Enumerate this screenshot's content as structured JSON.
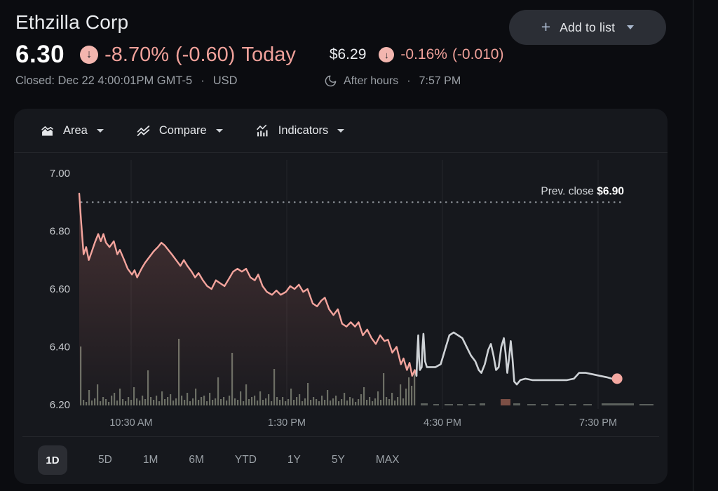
{
  "glyphs": {
    "down_arrow": "↓",
    "plus": "+",
    "dot": "·"
  },
  "header": {
    "company": "Ethzilla Corp",
    "price": "6.30",
    "change_percent": "-8.70%",
    "change_amount": "(-0.60)",
    "change_period": "Today",
    "closed_info": "Closed: Dec 22 4:00:01PM GMT-5",
    "currency": "USD",
    "after_hours": {
      "price": "$6.29",
      "change_percent": "-0.16%",
      "change_amount": "(-0.010)",
      "label": "After hours",
      "time": "7:57 PM"
    },
    "add_to_list_label": "Add to list"
  },
  "toolbar": {
    "area_label": "Area",
    "compare_label": "Compare",
    "indicators_label": "Indicators"
  },
  "tabs": [
    {
      "label": "1D",
      "selected": true
    },
    {
      "label": "5D",
      "selected": false
    },
    {
      "label": "1M",
      "selected": false
    },
    {
      "label": "6M",
      "selected": false
    },
    {
      "label": "YTD",
      "selected": false
    },
    {
      "label": "1Y",
      "selected": false
    },
    {
      "label": "5Y",
      "selected": false
    },
    {
      "label": "MAX",
      "selected": false
    }
  ],
  "colors": {
    "page_bg": "#0b0c10",
    "panel_bg": "#16181d",
    "down_text": "#f0a19a",
    "badge_bg": "#f3b6af",
    "badge_arrow": "#22252a",
    "line_regular": "#f4a49d",
    "line_after": "#ced2d6",
    "end_dot": "#f4a8a1",
    "area_fill_top": "rgba(242,139,130,0.22)",
    "area_fill_bottom": "rgba(242,139,130,0.02)",
    "grid": "#24262b",
    "prev_close_dots": "#8d9298",
    "y_tick_text": "#c6c9cd",
    "x_tick_text": "#9aa0a6",
    "volume": "#70766a",
    "volume_after": "#696f68",
    "volume_red": "#7c4f45"
  },
  "chart_data": {
    "type": "area",
    "title": "Ethzilla Corp intraday price (1D)",
    "y_axis": {
      "ticks": [
        7.0,
        6.8,
        6.6,
        6.4,
        6.2
      ],
      "range": [
        6.2,
        7.0
      ]
    },
    "x_axis": {
      "labels": [
        "10:30 AM",
        "1:30 PM",
        "4:30 PM",
        "7:30 PM"
      ],
      "label_minutes_from_open": [
        60,
        240,
        420,
        600
      ],
      "open_time": "9:30 AM",
      "grid": true
    },
    "prev_close": {
      "label": "Prev. close",
      "value_text": "$6.90",
      "value": 6.9
    },
    "series": [
      {
        "name": "regular_session",
        "color_key": "line_regular",
        "points": [
          [
            0,
            6.93
          ],
          [
            2,
            6.84
          ],
          [
            5,
            6.72
          ],
          [
            8,
            6.745
          ],
          [
            11,
            6.7
          ],
          [
            14,
            6.725
          ],
          [
            18,
            6.76
          ],
          [
            22,
            6.79
          ],
          [
            25,
            6.765
          ],
          [
            28,
            6.79
          ],
          [
            31,
            6.76
          ],
          [
            35,
            6.745
          ],
          [
            40,
            6.765
          ],
          [
            44,
            6.72
          ],
          [
            47,
            6.735
          ],
          [
            52,
            6.7
          ],
          [
            56,
            6.67
          ],
          [
            61,
            6.65
          ],
          [
            64,
            6.665
          ],
          [
            67,
            6.64
          ],
          [
            72,
            6.67
          ],
          [
            76,
            6.69
          ],
          [
            81,
            6.71
          ],
          [
            86,
            6.73
          ],
          [
            91,
            6.745
          ],
          [
            95,
            6.76
          ],
          [
            99,
            6.75
          ],
          [
            103,
            6.735
          ],
          [
            107,
            6.72
          ],
          [
            112,
            6.7
          ],
          [
            117,
            6.68
          ],
          [
            121,
            6.7
          ],
          [
            125,
            6.68
          ],
          [
            130,
            6.66
          ],
          [
            134,
            6.64
          ],
          [
            138,
            6.655
          ],
          [
            143,
            6.63
          ],
          [
            148,
            6.61
          ],
          [
            153,
            6.6
          ],
          [
            158,
            6.63
          ],
          [
            163,
            6.62
          ],
          [
            168,
            6.61
          ],
          [
            173,
            6.635
          ],
          [
            178,
            6.66
          ],
          [
            183,
            6.67
          ],
          [
            188,
            6.66
          ],
          [
            193,
            6.67
          ],
          [
            198,
            6.64
          ],
          [
            203,
            6.63
          ],
          [
            207,
            6.65
          ],
          [
            212,
            6.61
          ],
          [
            217,
            6.59
          ],
          [
            223,
            6.58
          ],
          [
            228,
            6.595
          ],
          [
            233,
            6.58
          ],
          [
            239,
            6.59
          ],
          [
            244,
            6.61
          ],
          [
            249,
            6.6
          ],
          [
            254,
            6.615
          ],
          [
            259,
            6.59
          ],
          [
            264,
            6.6
          ],
          [
            270,
            6.55
          ],
          [
            275,
            6.54
          ],
          [
            280,
            6.56
          ],
          [
            284,
            6.57
          ],
          [
            289,
            6.53
          ],
          [
            294,
            6.51
          ],
          [
            299,
            6.53
          ],
          [
            304,
            6.48
          ],
          [
            309,
            6.47
          ],
          [
            314,
            6.485
          ],
          [
            319,
            6.47
          ],
          [
            323,
            6.485
          ],
          [
            328,
            6.44
          ],
          [
            333,
            6.46
          ],
          [
            338,
            6.43
          ],
          [
            343,
            6.41
          ],
          [
            348,
            6.44
          ],
          [
            353,
            6.42
          ],
          [
            357,
            6.425
          ],
          [
            362,
            6.38
          ],
          [
            367,
            6.4
          ],
          [
            372,
            6.34
          ],
          [
            375,
            6.36
          ],
          [
            379,
            6.32
          ],
          [
            382,
            6.345
          ],
          [
            385,
            6.3
          ],
          [
            388,
            6.32
          ],
          [
            390,
            6.3
          ]
        ]
      },
      {
        "name": "after_hours",
        "color_key": "line_after",
        "points": [
          [
            390,
            6.3
          ],
          [
            391,
            6.38
          ],
          [
            392,
            6.44
          ],
          [
            393,
            6.36
          ],
          [
            394,
            6.32
          ],
          [
            396,
            6.33
          ],
          [
            397,
            6.4
          ],
          [
            398,
            6.445
          ],
          [
            400,
            6.35
          ],
          [
            402,
            6.33
          ],
          [
            406,
            6.33
          ],
          [
            412,
            6.33
          ],
          [
            418,
            6.34
          ],
          [
            424,
            6.4
          ],
          [
            428,
            6.44
          ],
          [
            433,
            6.45
          ],
          [
            438,
            6.44
          ],
          [
            443,
            6.43
          ],
          [
            448,
            6.4
          ],
          [
            453,
            6.37
          ],
          [
            458,
            6.35
          ],
          [
            462,
            6.32
          ],
          [
            465,
            6.31
          ],
          [
            469,
            6.34
          ],
          [
            473,
            6.39
          ],
          [
            476,
            6.41
          ],
          [
            479,
            6.37
          ],
          [
            482,
            6.32
          ],
          [
            485,
            6.33
          ],
          [
            488,
            6.4
          ],
          [
            491,
            6.43
          ],
          [
            493,
            6.38
          ],
          [
            495,
            6.31
          ],
          [
            497,
            6.36
          ],
          [
            499,
            6.42
          ],
          [
            501,
            6.36
          ],
          [
            503,
            6.28
          ],
          [
            506,
            6.27
          ],
          [
            510,
            6.285
          ],
          [
            516,
            6.29
          ],
          [
            524,
            6.285
          ],
          [
            534,
            6.285
          ],
          [
            544,
            6.285
          ],
          [
            554,
            6.285
          ],
          [
            564,
            6.285
          ],
          [
            572,
            6.29
          ],
          [
            578,
            6.31
          ],
          [
            586,
            6.31
          ],
          [
            594,
            6.305
          ],
          [
            602,
            6.3
          ],
          [
            610,
            6.295
          ],
          [
            616,
            6.29
          ],
          [
            622,
            6.29
          ]
        ]
      }
    ],
    "end_dot": {
      "minute": 622,
      "price": 6.29
    },
    "volume": {
      "x_start": 114,
      "x_step": 4,
      "bar_width": 2.2,
      "heights": [
        84,
        8,
        5,
        22,
        7,
        10,
        30,
        6,
        12,
        9,
        5,
        14,
        18,
        7,
        24,
        9,
        6,
        12,
        8,
        26,
        10,
        7,
        14,
        9,
        50,
        12,
        8,
        14,
        6,
        20,
        9,
        12,
        16,
        7,
        10,
        95,
        14,
        8,
        18,
        6,
        10,
        24,
        8,
        12,
        14,
        6,
        18,
        8,
        10,
        40,
        9,
        12,
        7,
        14,
        75,
        10,
        8,
        20,
        6,
        30,
        9,
        12,
        14,
        7,
        20,
        8,
        10,
        16,
        6,
        52,
        12,
        8,
        12,
        6,
        9,
        24,
        8,
        12,
        16,
        6,
        10,
        32,
        8,
        12,
        9,
        6,
        14,
        8,
        22,
        7,
        10,
        14,
        6,
        9,
        18,
        7,
        12,
        10,
        5,
        9,
        16,
        26,
        8,
        12,
        6,
        10,
        20,
        8,
        46,
        12,
        9,
        18,
        7,
        12,
        30,
        10,
        24,
        40,
        28,
        50
      ]
    },
    "after_volume_dashes": [
      [
        600,
        10,
        3
      ],
      [
        618,
        8,
        2
      ],
      [
        634,
        12,
        2
      ],
      [
        652,
        8,
        2
      ],
      [
        668,
        10,
        2
      ],
      [
        684,
        8,
        3
      ],
      [
        732,
        10,
        3
      ],
      [
        752,
        12,
        2
      ],
      [
        772,
        10,
        2
      ],
      [
        792,
        12,
        2
      ],
      [
        812,
        10,
        2
      ],
      [
        832,
        12,
        2
      ],
      [
        858,
        46,
        3
      ],
      [
        912,
        20,
        2
      ]
    ],
    "after_volume_red": [
      714,
      14,
      9
    ]
  }
}
